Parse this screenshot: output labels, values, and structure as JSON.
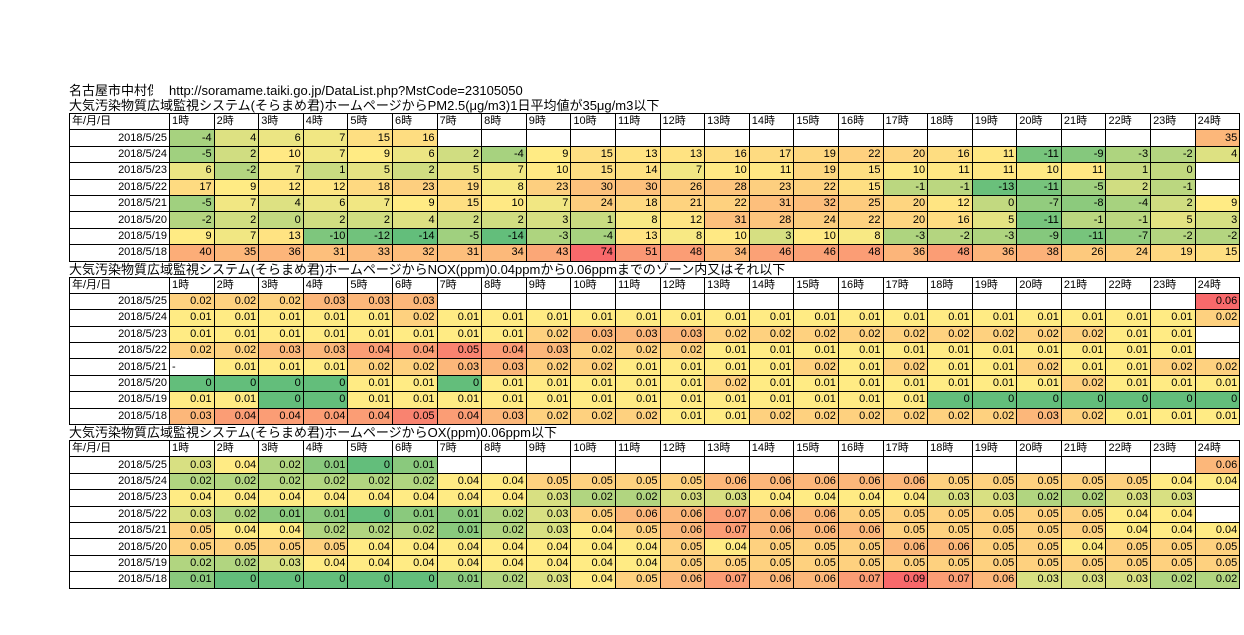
{
  "header": {
    "station": "名古屋市中村保",
    "url": "http://soramame.taiki.go.jp/DataList.php?MstCode=23105050"
  },
  "hour_headers": [
    "1時",
    "2時",
    "3時",
    "4時",
    "5時",
    "6時",
    "7時",
    "8時",
    "9時",
    "10時",
    "11時",
    "12時",
    "13時",
    "14時",
    "15時",
    "16時",
    "17時",
    "18時",
    "19時",
    "20時",
    "21時",
    "22時",
    "23時",
    "24時"
  ],
  "scale": {
    "min_color": "#63BE7B",
    "mid_color": "#FFEB84",
    "max_color": "#F8696B",
    "empty_color": "#FFFFFF"
  },
  "tables": [
    {
      "title": "大気汚染物質広域監視システム(そらまめ君)ホームページからPM2.5(μg/m3)1日平均値が35μg/m3以下",
      "corner": "年/月/日",
      "rows": [
        {
          "date": "2018/5/25",
          "values": [
            "-4",
            "4",
            "6",
            "7",
            "15",
            "16",
            "",
            "",
            "",
            "",
            "",
            "",
            "",
            "",
            "",
            "",
            "",
            "",
            "",
            "",
            "",
            "",
            "",
            "35"
          ]
        },
        {
          "date": "2018/5/24",
          "values": [
            "-5",
            "2",
            "10",
            "7",
            "9",
            "6",
            "2",
            "-4",
            "9",
            "15",
            "13",
            "13",
            "16",
            "17",
            "19",
            "22",
            "20",
            "16",
            "11",
            "-11",
            "-9",
            "-3",
            "-2",
            "4"
          ]
        },
        {
          "date": "2018/5/23",
          "values": [
            "6",
            "-2",
            "7",
            "1",
            "5",
            "2",
            "5",
            "7",
            "10",
            "15",
            "14",
            "7",
            "10",
            "11",
            "19",
            "15",
            "10",
            "11",
            "11",
            "10",
            "11",
            "1",
            "0",
            ""
          ]
        },
        {
          "date": "2018/5/22",
          "values": [
            "17",
            "9",
            "12",
            "12",
            "18",
            "23",
            "19",
            "8",
            "23",
            "30",
            "30",
            "26",
            "28",
            "23",
            "22",
            "15",
            "-1",
            "-1",
            "-13",
            "-11",
            "-5",
            "2",
            "-1",
            ""
          ]
        },
        {
          "date": "2018/5/21",
          "values": [
            "-5",
            "7",
            "4",
            "6",
            "7",
            "9",
            "15",
            "10",
            "7",
            "24",
            "18",
            "21",
            "22",
            "31",
            "32",
            "25",
            "20",
            "12",
            "0",
            "-7",
            "-8",
            "-4",
            "2",
            "9"
          ]
        },
        {
          "date": "2018/5/20",
          "values": [
            "-2",
            "2",
            "0",
            "2",
            "2",
            "4",
            "2",
            "2",
            "3",
            "1",
            "8",
            "12",
            "31",
            "28",
            "24",
            "22",
            "20",
            "16",
            "5",
            "-11",
            "-1",
            "-1",
            "5",
            "3"
          ]
        },
        {
          "date": "2018/5/19",
          "values": [
            "9",
            "7",
            "13",
            "-10",
            "-12",
            "-14",
            "-5",
            "-14",
            "-3",
            "-4",
            "13",
            "8",
            "10",
            "3",
            "10",
            "8",
            "-3",
            "-2",
            "-3",
            "-9",
            "-11",
            "-7",
            "-2",
            "-2"
          ]
        },
        {
          "date": "2018/5/18",
          "values": [
            "40",
            "35",
            "36",
            "31",
            "33",
            "32",
            "31",
            "34",
            "43",
            "74",
            "51",
            "48",
            "34",
            "46",
            "46",
            "48",
            "36",
            "48",
            "36",
            "38",
            "26",
            "24",
            "19",
            "15"
          ]
        }
      ]
    },
    {
      "title": "大気汚染物質広域監視システム(そらまめ君)ホームページからNOX(ppm)0.04ppmから0.06ppmまでのゾーン内又はそれ以下",
      "corner": "年/月/日",
      "rows": [
        {
          "date": "2018/5/25",
          "values": [
            "0.02",
            "0.02",
            "0.02",
            "0.03",
            "0.03",
            "0.03",
            "",
            "",
            "",
            "",
            "",
            "",
            "",
            "",
            "",
            "",
            "",
            "",
            "",
            "",
            "",
            "",
            "",
            "0.06"
          ]
        },
        {
          "date": "2018/5/24",
          "values": [
            "0.01",
            "0.01",
            "0.01",
            "0.01",
            "0.01",
            "0.02",
            "0.01",
            "0.01",
            "0.01",
            "0.01",
            "0.01",
            "0.01",
            "0.01",
            "0.01",
            "0.01",
            "0.01",
            "0.01",
            "0.01",
            "0.01",
            "0.01",
            "0.01",
            "0.01",
            "0.01",
            "0.02"
          ]
        },
        {
          "date": "2018/5/23",
          "values": [
            "0.01",
            "0.01",
            "0.01",
            "0.01",
            "0.01",
            "0.01",
            "0.01",
            "0.01",
            "0.02",
            "0.03",
            "0.03",
            "0.03",
            "0.02",
            "0.02",
            "0.02",
            "0.02",
            "0.02",
            "0.02",
            "0.02",
            "0.02",
            "0.02",
            "0.01",
            "0.01",
            ""
          ]
        },
        {
          "date": "2018/5/22",
          "values": [
            "0.02",
            "0.02",
            "0.03",
            "0.03",
            "0.04",
            "0.04",
            "0.05",
            "0.04",
            "0.03",
            "0.02",
            "0.02",
            "0.02",
            "0.01",
            "0.01",
            "0.01",
            "0.01",
            "0.01",
            "0.01",
            "0.01",
            "0.01",
            "0.01",
            "0.01",
            "0.01",
            ""
          ]
        },
        {
          "date": "2018/5/21",
          "values": [
            "-",
            "0.01",
            "0.01",
            "0.01",
            "0.02",
            "0.02",
            "0.03",
            "0.03",
            "0.02",
            "0.02",
            "0.01",
            "0.01",
            "0.01",
            "0.01",
            "0.02",
            "0.01",
            "0.02",
            "0.01",
            "0.01",
            "0.02",
            "0.01",
            "0.01",
            "0.02",
            "0.02"
          ]
        },
        {
          "date": "2018/5/20",
          "values": [
            "0",
            "0",
            "0",
            "0",
            "0.01",
            "0.01",
            "0",
            "0.01",
            "0.01",
            "0.01",
            "0.01",
            "0.01",
            "0.02",
            "0.01",
            "0.01",
            "0.01",
            "0.01",
            "0.01",
            "0.01",
            "0.01",
            "0.02",
            "0.01",
            "0.01",
            "0.01"
          ]
        },
        {
          "date": "2018/5/19",
          "values": [
            "0.01",
            "0.01",
            "0",
            "0",
            "0.01",
            "0.01",
            "0.01",
            "0.01",
            "0.01",
            "0.01",
            "0.01",
            "0.01",
            "0.01",
            "0.01",
            "0.01",
            "0.01",
            "0.01",
            "0",
            "0",
            "0",
            "0",
            "0",
            "0",
            "0"
          ]
        },
        {
          "date": "2018/5/18",
          "values": [
            "0.03",
            "0.04",
            "0.04",
            "0.04",
            "0.04",
            "0.05",
            "0.04",
            "0.03",
            "0.02",
            "0.02",
            "0.02",
            "0.01",
            "0.01",
            "0.02",
            "0.02",
            "0.02",
            "0.02",
            "0.02",
            "0.02",
            "0.03",
            "0.02",
            "0.01",
            "0.01",
            "0.01"
          ]
        }
      ]
    },
    {
      "title": "大気汚染物質広域監視システム(そらまめ君)ホームページからOX(ppm)0.06ppm以下",
      "corner": "年/月/日",
      "rows": [
        {
          "date": "2018/5/25",
          "values": [
            "0.03",
            "0.04",
            "0.02",
            "0.01",
            "0",
            "0.01",
            "",
            "",
            "",
            "",
            "",
            "",
            "",
            "",
            "",
            "",
            "",
            "",
            "",
            "",
            "",
            "",
            "",
            "0.06"
          ]
        },
        {
          "date": "2018/5/24",
          "values": [
            "0.02",
            "0.02",
            "0.02",
            "0.02",
            "0.02",
            "0.02",
            "0.04",
            "0.04",
            "0.05",
            "0.05",
            "0.05",
            "0.05",
            "0.06",
            "0.06",
            "0.06",
            "0.06",
            "0.06",
            "0.05",
            "0.05",
            "0.05",
            "0.05",
            "0.05",
            "0.04",
            "0.04"
          ]
        },
        {
          "date": "2018/5/23",
          "values": [
            "0.04",
            "0.04",
            "0.04",
            "0.04",
            "0.04",
            "0.04",
            "0.04",
            "0.04",
            "0.03",
            "0.02",
            "0.02",
            "0.03",
            "0.03",
            "0.04",
            "0.04",
            "0.04",
            "0.04",
            "0.03",
            "0.03",
            "0.02",
            "0.02",
            "0.03",
            "0.03",
            ""
          ]
        },
        {
          "date": "2018/5/22",
          "values": [
            "0.03",
            "0.02",
            "0.01",
            "0.01",
            "0",
            "0.01",
            "0.01",
            "0.02",
            "0.03",
            "0.05",
            "0.06",
            "0.06",
            "0.07",
            "0.06",
            "0.06",
            "0.05",
            "0.05",
            "0.05",
            "0.05",
            "0.05",
            "0.05",
            "0.04",
            "0.04",
            ""
          ]
        },
        {
          "date": "2018/5/21",
          "values": [
            "0.05",
            "0.04",
            "0.04",
            "0.02",
            "0.02",
            "0.02",
            "0.01",
            "0.02",
            "0.03",
            "0.04",
            "0.05",
            "0.06",
            "0.07",
            "0.06",
            "0.06",
            "0.06",
            "0.05",
            "0.05",
            "0.05",
            "0.05",
            "0.05",
            "0.04",
            "0.04",
            "0.04"
          ]
        },
        {
          "date": "2018/5/20",
          "values": [
            "0.05",
            "0.05",
            "0.05",
            "0.05",
            "0.04",
            "0.04",
            "0.04",
            "0.04",
            "0.04",
            "0.04",
            "0.04",
            "0.05",
            "0.04",
            "0.05",
            "0.05",
            "0.05",
            "0.06",
            "0.06",
            "0.05",
            "0.05",
            "0.04",
            "0.05",
            "0.05",
            "0.05"
          ]
        },
        {
          "date": "2018/5/19",
          "values": [
            "0.02",
            "0.02",
            "0.03",
            "0.04",
            "0.04",
            "0.04",
            "0.04",
            "0.04",
            "0.04",
            "0.04",
            "0.04",
            "0.05",
            "0.05",
            "0.05",
            "0.05",
            "0.05",
            "0.05",
            "0.05",
            "0.05",
            "0.05",
            "0.05",
            "0.05",
            "0.05",
            "0.05"
          ]
        },
        {
          "date": "2018/5/18",
          "values": [
            "0.01",
            "0",
            "0",
            "0",
            "0",
            "0",
            "0.01",
            "0.02",
            "0.03",
            "0.04",
            "0.05",
            "0.06",
            "0.07",
            "0.06",
            "0.06",
            "0.07",
            "0.09",
            "0.07",
            "0.06",
            "0.03",
            "0.03",
            "0.03",
            "0.02",
            "0.02"
          ]
        }
      ]
    }
  ]
}
